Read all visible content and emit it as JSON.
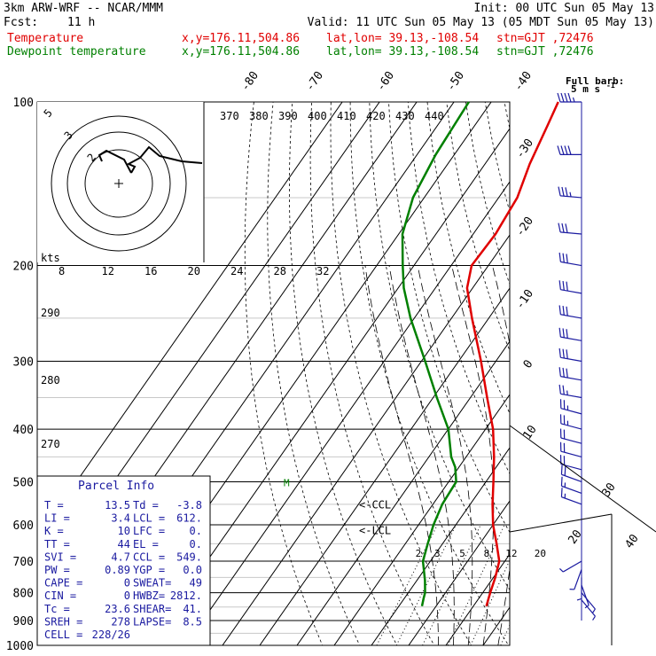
{
  "header": {
    "model": "3km ARW-WRF -- NCAR/MMM",
    "init": "Init: 00 UTC Sun 05 May 13",
    "fcst_label": "Fcst:",
    "fcst_value": "11 h",
    "valid": "Valid: 11 UTC Sun 05 May 13 (05 MDT Sun 05 May 13)",
    "temp_label": "Temperature",
    "dewp_label": "Dewpoint temperature",
    "xy": "x,y=176.11,504.86",
    "latlon": "lat,lon= 39.13,-108.54",
    "stn": "stn=GJT ,72476"
  },
  "colors": {
    "temperature": "#e00000",
    "dewpoint": "#008000",
    "axes": "#000000",
    "isotherm_light": "#c8c8c8",
    "wind": "#1a1aa0"
  },
  "chart_data": {
    "type": "line",
    "title": "",
    "ylabel": "",
    "xlabel": "",
    "y_scale": "log-pressure",
    "ylim": [
      1000,
      100
    ],
    "pressure_ticks": [
      100,
      200,
      300,
      400,
      500,
      600,
      700,
      800,
      900,
      1000
    ],
    "skewed_isotherm_labels": [
      "-80",
      "-70",
      "-60",
      "-50",
      "-40",
      "-30",
      "-20",
      "-10",
      "0",
      "10",
      "20",
      "30",
      "40"
    ],
    "theta_labels": [
      "370",
      "380",
      "390",
      "400",
      "410",
      "420",
      "430",
      "440"
    ],
    "theta_side_labels": [
      "290",
      "280",
      "270"
    ],
    "mixing_ratio_labels": [
      "2",
      "3",
      "5",
      "8",
      "12",
      "20"
    ],
    "wind_speed_scale": {
      "label": "kts",
      "ticks": [
        "8",
        "12",
        "16",
        "20",
        "24",
        "28",
        "32"
      ]
    },
    "wind_barb_legend": {
      "line1": "Full barb:",
      "line2": "5 m s",
      "exp": "-1"
    },
    "hodograph_rings": [
      "5",
      "3",
      "2"
    ],
    "series": [
      {
        "name": "Temperature",
        "color": "#e00000",
        "points": [
          {
            "p": 847,
            "t": 13.5
          },
          {
            "p": 800,
            "t": 12.0
          },
          {
            "p": 750,
            "t": 10.5
          },
          {
            "p": 700,
            "t": 8.5
          },
          {
            "p": 650,
            "t": 4.5
          },
          {
            "p": 600,
            "t": 0.0
          },
          {
            "p": 550,
            "t": -4.0
          },
          {
            "p": 500,
            "t": -8.0
          },
          {
            "p": 450,
            "t": -12.5
          },
          {
            "p": 400,
            "t": -18.0
          },
          {
            "p": 350,
            "t": -25.5
          },
          {
            "p": 300,
            "t": -34.0
          },
          {
            "p": 250,
            "t": -44.5
          },
          {
            "p": 220,
            "t": -51.5
          },
          {
            "p": 200,
            "t": -54.5
          },
          {
            "p": 175,
            "t": -54.0
          },
          {
            "p": 150,
            "t": -55.0
          },
          {
            "p": 130,
            "t": -58.0
          },
          {
            "p": 110,
            "t": -60.5
          },
          {
            "p": 100,
            "t": -62.0
          }
        ]
      },
      {
        "name": "Dewpoint temperature",
        "color": "#008000",
        "points": [
          {
            "p": 847,
            "t": -3.8
          },
          {
            "p": 820,
            "t": -4.8
          },
          {
            "p": 800,
            "t": -5.5
          },
          {
            "p": 760,
            "t": -7.8
          },
          {
            "p": 700,
            "t": -12.0
          },
          {
            "p": 650,
            "t": -14.0
          },
          {
            "p": 600,
            "t": -16.0
          },
          {
            "p": 550,
            "t": -17.5
          },
          {
            "p": 500,
            "t": -18.0
          },
          {
            "p": 470,
            "t": -21.0
          },
          {
            "p": 450,
            "t": -24.0
          },
          {
            "p": 400,
            "t": -30.0
          },
          {
            "p": 350,
            "t": -39.0
          },
          {
            "p": 300,
            "t": -49.0
          },
          {
            "p": 250,
            "t": -61.0
          },
          {
            "p": 220,
            "t": -68.5
          },
          {
            "p": 200,
            "t": -73.0
          },
          {
            "p": 175,
            "t": -79.0
          },
          {
            "p": 150,
            "t": -83.0
          },
          {
            "p": 125,
            "t": -85.0
          },
          {
            "p": 100,
            "t": -86.0
          }
        ]
      }
    ],
    "winds": [
      {
        "p": 100,
        "dir": 270,
        "kt": 45
      },
      {
        "p": 125,
        "dir": 270,
        "kt": 40
      },
      {
        "p": 150,
        "dir": 275,
        "kt": 35
      },
      {
        "p": 175,
        "dir": 275,
        "kt": 30
      },
      {
        "p": 200,
        "dir": 280,
        "kt": 30
      },
      {
        "p": 225,
        "dir": 280,
        "kt": 30
      },
      {
        "p": 250,
        "dir": 280,
        "kt": 30
      },
      {
        "p": 275,
        "dir": 280,
        "kt": 30
      },
      {
        "p": 300,
        "dir": 280,
        "kt": 30
      },
      {
        "p": 325,
        "dir": 280,
        "kt": 30
      },
      {
        "p": 350,
        "dir": 280,
        "kt": 25
      },
      {
        "p": 375,
        "dir": 285,
        "kt": 25
      },
      {
        "p": 400,
        "dir": 285,
        "kt": 25
      },
      {
        "p": 425,
        "dir": 285,
        "kt": 20
      },
      {
        "p": 450,
        "dir": 285,
        "kt": 20
      },
      {
        "p": 475,
        "dir": 285,
        "kt": 20
      },
      {
        "p": 500,
        "dir": 290,
        "kt": 20
      },
      {
        "p": 525,
        "dir": 290,
        "kt": 15
      },
      {
        "p": 550,
        "dir": 290,
        "kt": 15
      },
      {
        "p": 700,
        "dir": 240,
        "kt": 5
      },
      {
        "p": 725,
        "dir": 200,
        "kt": 5
      },
      {
        "p": 750,
        "dir": 180,
        "kt": 5
      },
      {
        "p": 775,
        "dir": 160,
        "kt": 5
      },
      {
        "p": 800,
        "dir": 140,
        "kt": 5
      },
      {
        "p": 825,
        "dir": 140,
        "kt": 5
      }
    ],
    "annotations": [
      {
        "text": "<-CCL",
        "p": 549
      },
      {
        "text": "<-LCL",
        "p": 612
      }
    ]
  },
  "parcel_info": {
    "title": "Parcel Info",
    "rows": [
      {
        "l1": "T  =",
        "v1": "13.5",
        "l2": "Td =",
        "v2": "-3.8"
      },
      {
        "l1": "LI =",
        "v1": "3.4",
        "l2": "LCL =",
        "v2": "612."
      },
      {
        "l1": "K  =",
        "v1": "10",
        "l2": "LFC =",
        "v2": "0."
      },
      {
        "l1": "TT =",
        "v1": "44",
        "l2": "EL =",
        "v2": "0."
      },
      {
        "l1": "SVI =",
        "v1": "4.7",
        "l2": "CCL =",
        "v2": "549."
      },
      {
        "l1": "PW =",
        "v1": "0.89",
        "l2": "YGP =",
        "v2": "0.0"
      },
      {
        "l1": "CAPE =",
        "v1": "0",
        "l2": "SWEAT=",
        "v2": "49"
      },
      {
        "l1": "CIN =",
        "v1": "0",
        "l2": "HWBZ=",
        "v2": "2812."
      },
      {
        "l1": "Tc =",
        "v1": "23.6",
        "l2": "SHEAR=",
        "v2": "41."
      },
      {
        "l1": "SREH =",
        "v1": "278",
        "l2": "LAPSE=",
        "v2": "8.5"
      },
      {
        "l1": "CELL =",
        "v1": "228/26",
        "l2": "",
        "v2": ""
      }
    ]
  }
}
